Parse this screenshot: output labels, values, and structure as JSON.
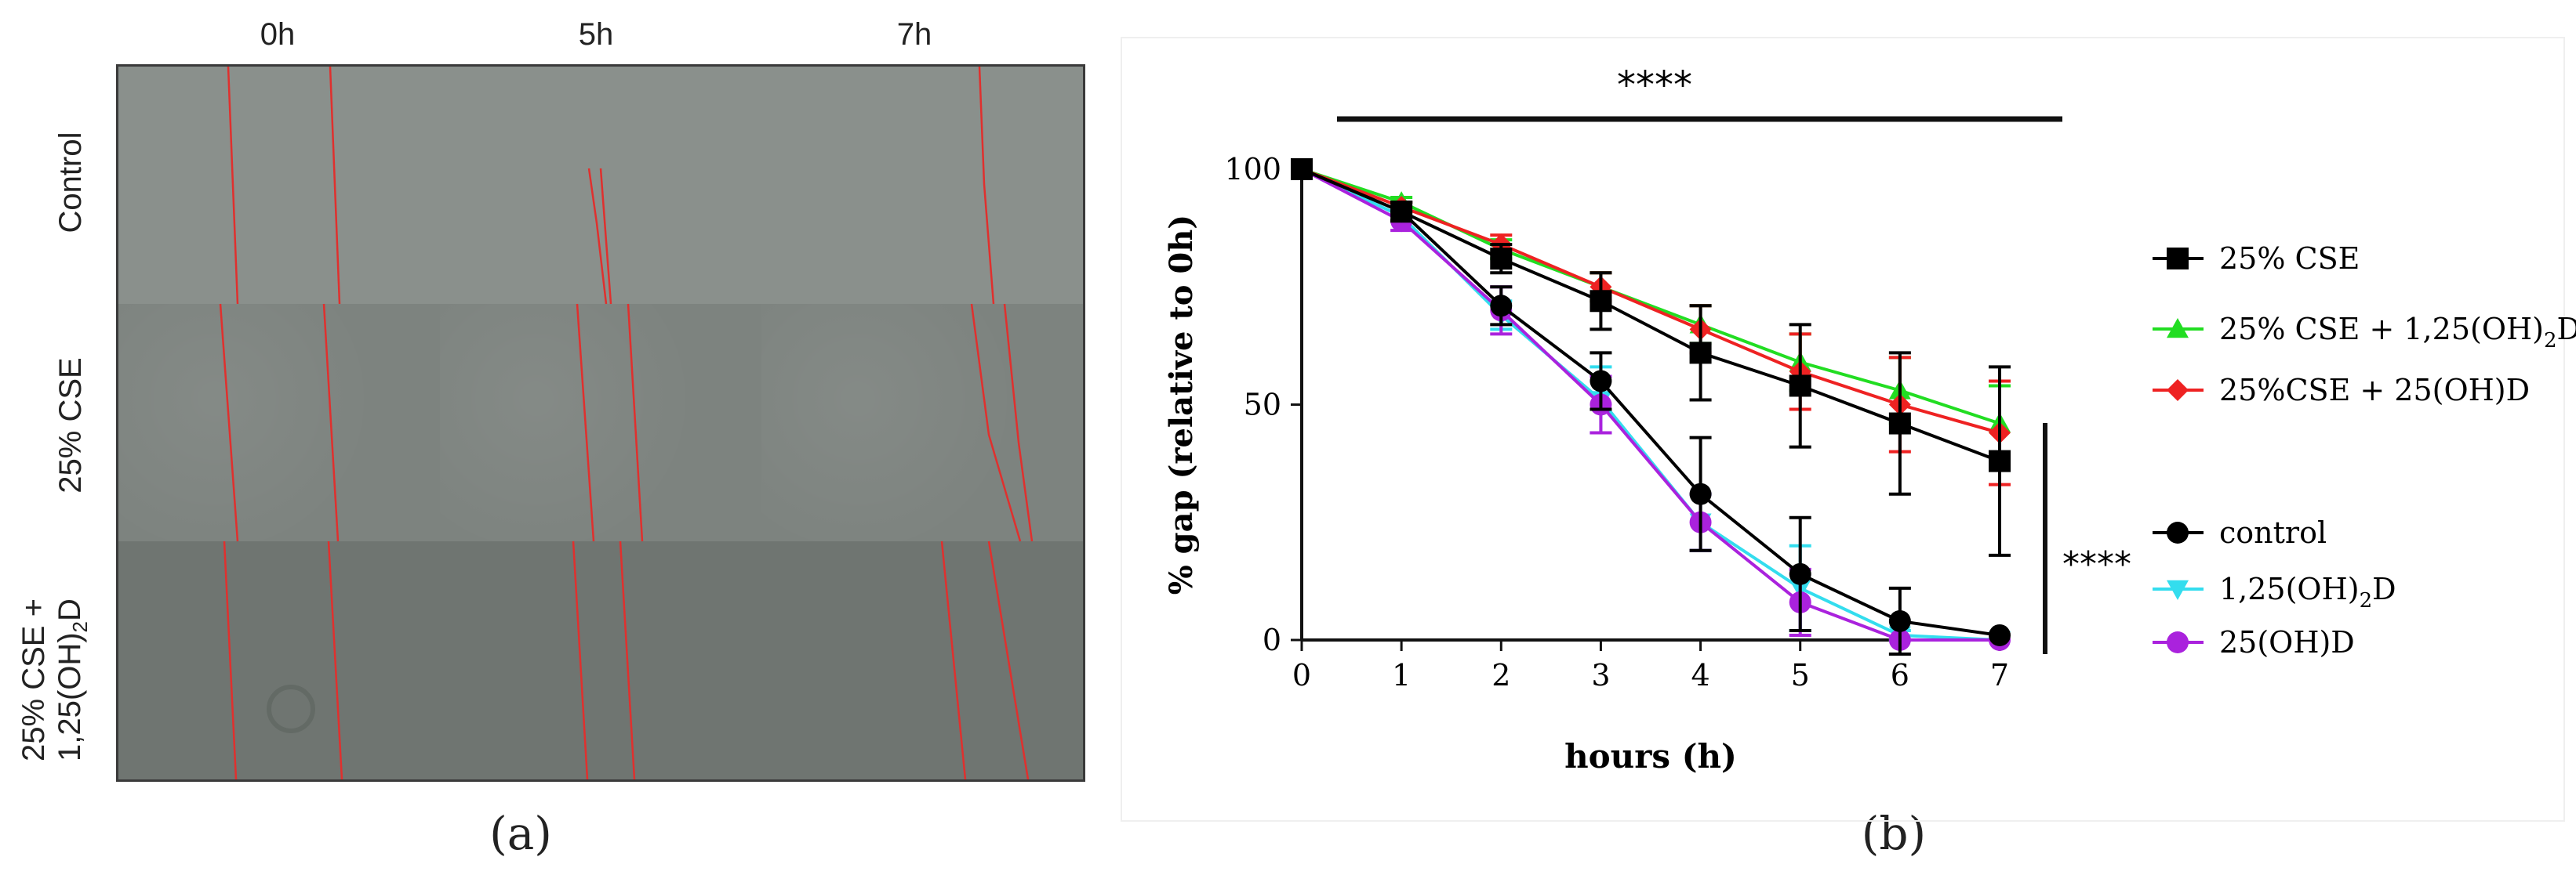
{
  "panel_a": {
    "label": "(a)",
    "columns": [
      "0h",
      "5h",
      "7h"
    ],
    "rows": [
      "Control",
      "25% CSE",
      "25% CSE +",
      "1,25(OH)",
      "2",
      "D"
    ]
  },
  "panel_b": {
    "label": "(b)"
  },
  "chart_data": {
    "type": "line",
    "title": "",
    "xlabel": "hours (h)",
    "ylabel": "% gap (relative to 0h)",
    "xlim": [
      0,
      7
    ],
    "ylim": [
      0,
      100
    ],
    "x_ticks": [
      "0",
      "1",
      "2",
      "3",
      "4",
      "5",
      "6",
      "7"
    ],
    "y_ticks": [
      "0",
      "50",
      "100"
    ],
    "x": [
      0,
      1,
      2,
      3,
      4,
      5,
      6,
      7
    ],
    "significance": [
      "****",
      "****"
    ],
    "legend_placement": "right",
    "series": [
      {
        "name": "25% CSE",
        "color": "#000000",
        "marker": "square",
        "values": [
          100,
          91,
          81,
          72,
          61,
          54,
          46,
          38
        ],
        "errors": [
          0,
          2,
          3,
          6,
          10,
          13,
          15,
          20
        ]
      },
      {
        "name_parts": [
          "25% CSE + 1,25(OH)",
          "2",
          "D"
        ],
        "color": "#22dd22",
        "marker": "triangle-up",
        "values": [
          100,
          93,
          83,
          75,
          67,
          59,
          53,
          46
        ],
        "errors": [
          0,
          1,
          2,
          3,
          4,
          6,
          7,
          8
        ]
      },
      {
        "name": "25%CSE + 25(OH)D",
        "color": "#ee2222",
        "marker": "diamond",
        "values": [
          100,
          92,
          84,
          75,
          66,
          57,
          50,
          44
        ],
        "errors": [
          0,
          1,
          2,
          3,
          5,
          8,
          10,
          11
        ]
      },
      {
        "name": "control",
        "color": "#000000",
        "marker": "circle",
        "values": [
          100,
          91,
          71,
          55,
          31,
          14,
          4,
          1
        ],
        "errors": [
          0,
          2,
          4,
          6,
          12,
          12,
          7,
          0
        ]
      },
      {
        "name_parts": [
          "1,25(OH)",
          "2",
          "D"
        ],
        "color": "#33ddee",
        "marker": "triangle-down",
        "values": [
          100,
          90,
          69,
          51,
          25,
          11,
          1,
          0
        ],
        "errors": [
          0,
          1,
          3,
          7,
          6,
          9,
          1,
          0
        ]
      },
      {
        "name": "25(OH)D",
        "color": "#aa22dd",
        "marker": "circle",
        "values": [
          100,
          89,
          70,
          50,
          25,
          8,
          0,
          0
        ],
        "errors": [
          0,
          2,
          5,
          6,
          6,
          7,
          0,
          0
        ]
      }
    ]
  }
}
